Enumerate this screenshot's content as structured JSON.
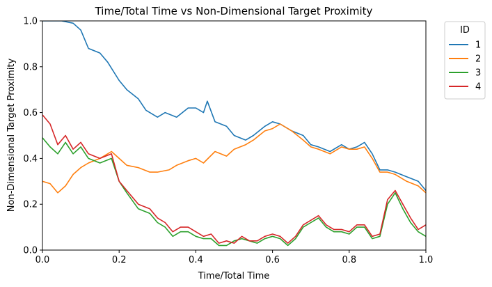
{
  "chart_data": {
    "type": "line",
    "title": "Time/Total Time vs Non-Dimensional Target Proximity",
    "xlabel": "Time/Total Time",
    "ylabel": "Non-Dimensional Target Proximity",
    "xlim": [
      0.0,
      1.0
    ],
    "ylim": [
      0.0,
      1.0
    ],
    "xticks": [
      "0.0",
      "0.2",
      "0.4",
      "0.6",
      "0.8",
      "1.0"
    ],
    "yticks": [
      "0.0",
      "0.2",
      "0.4",
      "0.6",
      "0.8",
      "1.0"
    ],
    "grid": false,
    "legend": {
      "title": "ID",
      "placement": "outside-right-top"
    },
    "series": [
      {
        "name": "1",
        "color": "#1f77b4",
        "x": [
          0.0,
          0.05,
          0.08,
          0.1,
          0.12,
          0.15,
          0.17,
          0.2,
          0.22,
          0.25,
          0.27,
          0.3,
          0.32,
          0.35,
          0.38,
          0.4,
          0.42,
          0.43,
          0.45,
          0.48,
          0.5,
          0.53,
          0.55,
          0.58,
          0.6,
          0.62,
          0.65,
          0.68,
          0.7,
          0.72,
          0.75,
          0.78,
          0.8,
          0.82,
          0.84,
          0.86,
          0.88,
          0.9,
          0.92,
          0.95,
          0.98,
          1.0
        ],
        "values": [
          1.0,
          1.0,
          0.99,
          0.96,
          0.88,
          0.86,
          0.82,
          0.74,
          0.7,
          0.66,
          0.61,
          0.58,
          0.6,
          0.58,
          0.62,
          0.62,
          0.6,
          0.65,
          0.56,
          0.54,
          0.5,
          0.48,
          0.5,
          0.54,
          0.56,
          0.55,
          0.52,
          0.5,
          0.46,
          0.45,
          0.43,
          0.46,
          0.44,
          0.45,
          0.47,
          0.42,
          0.35,
          0.35,
          0.34,
          0.32,
          0.3,
          0.26
        ]
      },
      {
        "name": "2",
        "color": "#ff7f0e",
        "x": [
          0.0,
          0.02,
          0.04,
          0.06,
          0.08,
          0.1,
          0.12,
          0.15,
          0.18,
          0.2,
          0.22,
          0.25,
          0.28,
          0.3,
          0.33,
          0.35,
          0.38,
          0.4,
          0.42,
          0.45,
          0.48,
          0.5,
          0.53,
          0.55,
          0.58,
          0.6,
          0.62,
          0.65,
          0.68,
          0.7,
          0.72,
          0.75,
          0.78,
          0.8,
          0.82,
          0.84,
          0.86,
          0.88,
          0.9,
          0.92,
          0.95,
          0.98,
          1.0
        ],
        "values": [
          0.3,
          0.29,
          0.25,
          0.28,
          0.33,
          0.36,
          0.38,
          0.4,
          0.43,
          0.4,
          0.37,
          0.36,
          0.34,
          0.34,
          0.35,
          0.37,
          0.39,
          0.4,
          0.38,
          0.43,
          0.41,
          0.44,
          0.46,
          0.48,
          0.52,
          0.53,
          0.55,
          0.52,
          0.48,
          0.45,
          0.44,
          0.42,
          0.45,
          0.44,
          0.44,
          0.45,
          0.4,
          0.34,
          0.34,
          0.33,
          0.3,
          0.28,
          0.25
        ]
      },
      {
        "name": "3",
        "color": "#2ca02c",
        "x": [
          0.0,
          0.02,
          0.04,
          0.06,
          0.08,
          0.1,
          0.12,
          0.15,
          0.18,
          0.2,
          0.22,
          0.25,
          0.28,
          0.3,
          0.32,
          0.34,
          0.36,
          0.38,
          0.4,
          0.42,
          0.44,
          0.46,
          0.48,
          0.5,
          0.52,
          0.54,
          0.56,
          0.58,
          0.6,
          0.62,
          0.64,
          0.66,
          0.68,
          0.7,
          0.72,
          0.74,
          0.76,
          0.78,
          0.8,
          0.82,
          0.84,
          0.86,
          0.88,
          0.9,
          0.92,
          0.94,
          0.96,
          0.98,
          1.0
        ],
        "values": [
          0.49,
          0.45,
          0.42,
          0.47,
          0.42,
          0.45,
          0.4,
          0.38,
          0.4,
          0.3,
          0.25,
          0.18,
          0.16,
          0.12,
          0.1,
          0.06,
          0.08,
          0.08,
          0.06,
          0.05,
          0.05,
          0.02,
          0.02,
          0.04,
          0.05,
          0.04,
          0.03,
          0.05,
          0.06,
          0.05,
          0.02,
          0.05,
          0.1,
          0.12,
          0.14,
          0.1,
          0.08,
          0.08,
          0.07,
          0.1,
          0.1,
          0.05,
          0.06,
          0.2,
          0.25,
          0.18,
          0.12,
          0.08,
          0.06
        ]
      },
      {
        "name": "4",
        "color": "#d62728",
        "x": [
          0.0,
          0.02,
          0.04,
          0.06,
          0.08,
          0.1,
          0.12,
          0.15,
          0.18,
          0.2,
          0.22,
          0.25,
          0.28,
          0.3,
          0.32,
          0.34,
          0.36,
          0.38,
          0.4,
          0.42,
          0.44,
          0.46,
          0.48,
          0.5,
          0.52,
          0.54,
          0.56,
          0.58,
          0.6,
          0.62,
          0.64,
          0.66,
          0.68,
          0.7,
          0.72,
          0.74,
          0.76,
          0.78,
          0.8,
          0.82,
          0.84,
          0.86,
          0.88,
          0.9,
          0.92,
          0.94,
          0.96,
          0.98,
          1.0
        ],
        "values": [
          0.59,
          0.55,
          0.46,
          0.5,
          0.44,
          0.47,
          0.42,
          0.4,
          0.42,
          0.3,
          0.26,
          0.2,
          0.18,
          0.14,
          0.12,
          0.08,
          0.1,
          0.1,
          0.08,
          0.06,
          0.07,
          0.03,
          0.04,
          0.03,
          0.06,
          0.04,
          0.04,
          0.06,
          0.07,
          0.06,
          0.03,
          0.06,
          0.11,
          0.13,
          0.15,
          0.11,
          0.09,
          0.09,
          0.08,
          0.11,
          0.11,
          0.06,
          0.07,
          0.22,
          0.26,
          0.2,
          0.14,
          0.09,
          0.11
        ]
      }
    ]
  }
}
